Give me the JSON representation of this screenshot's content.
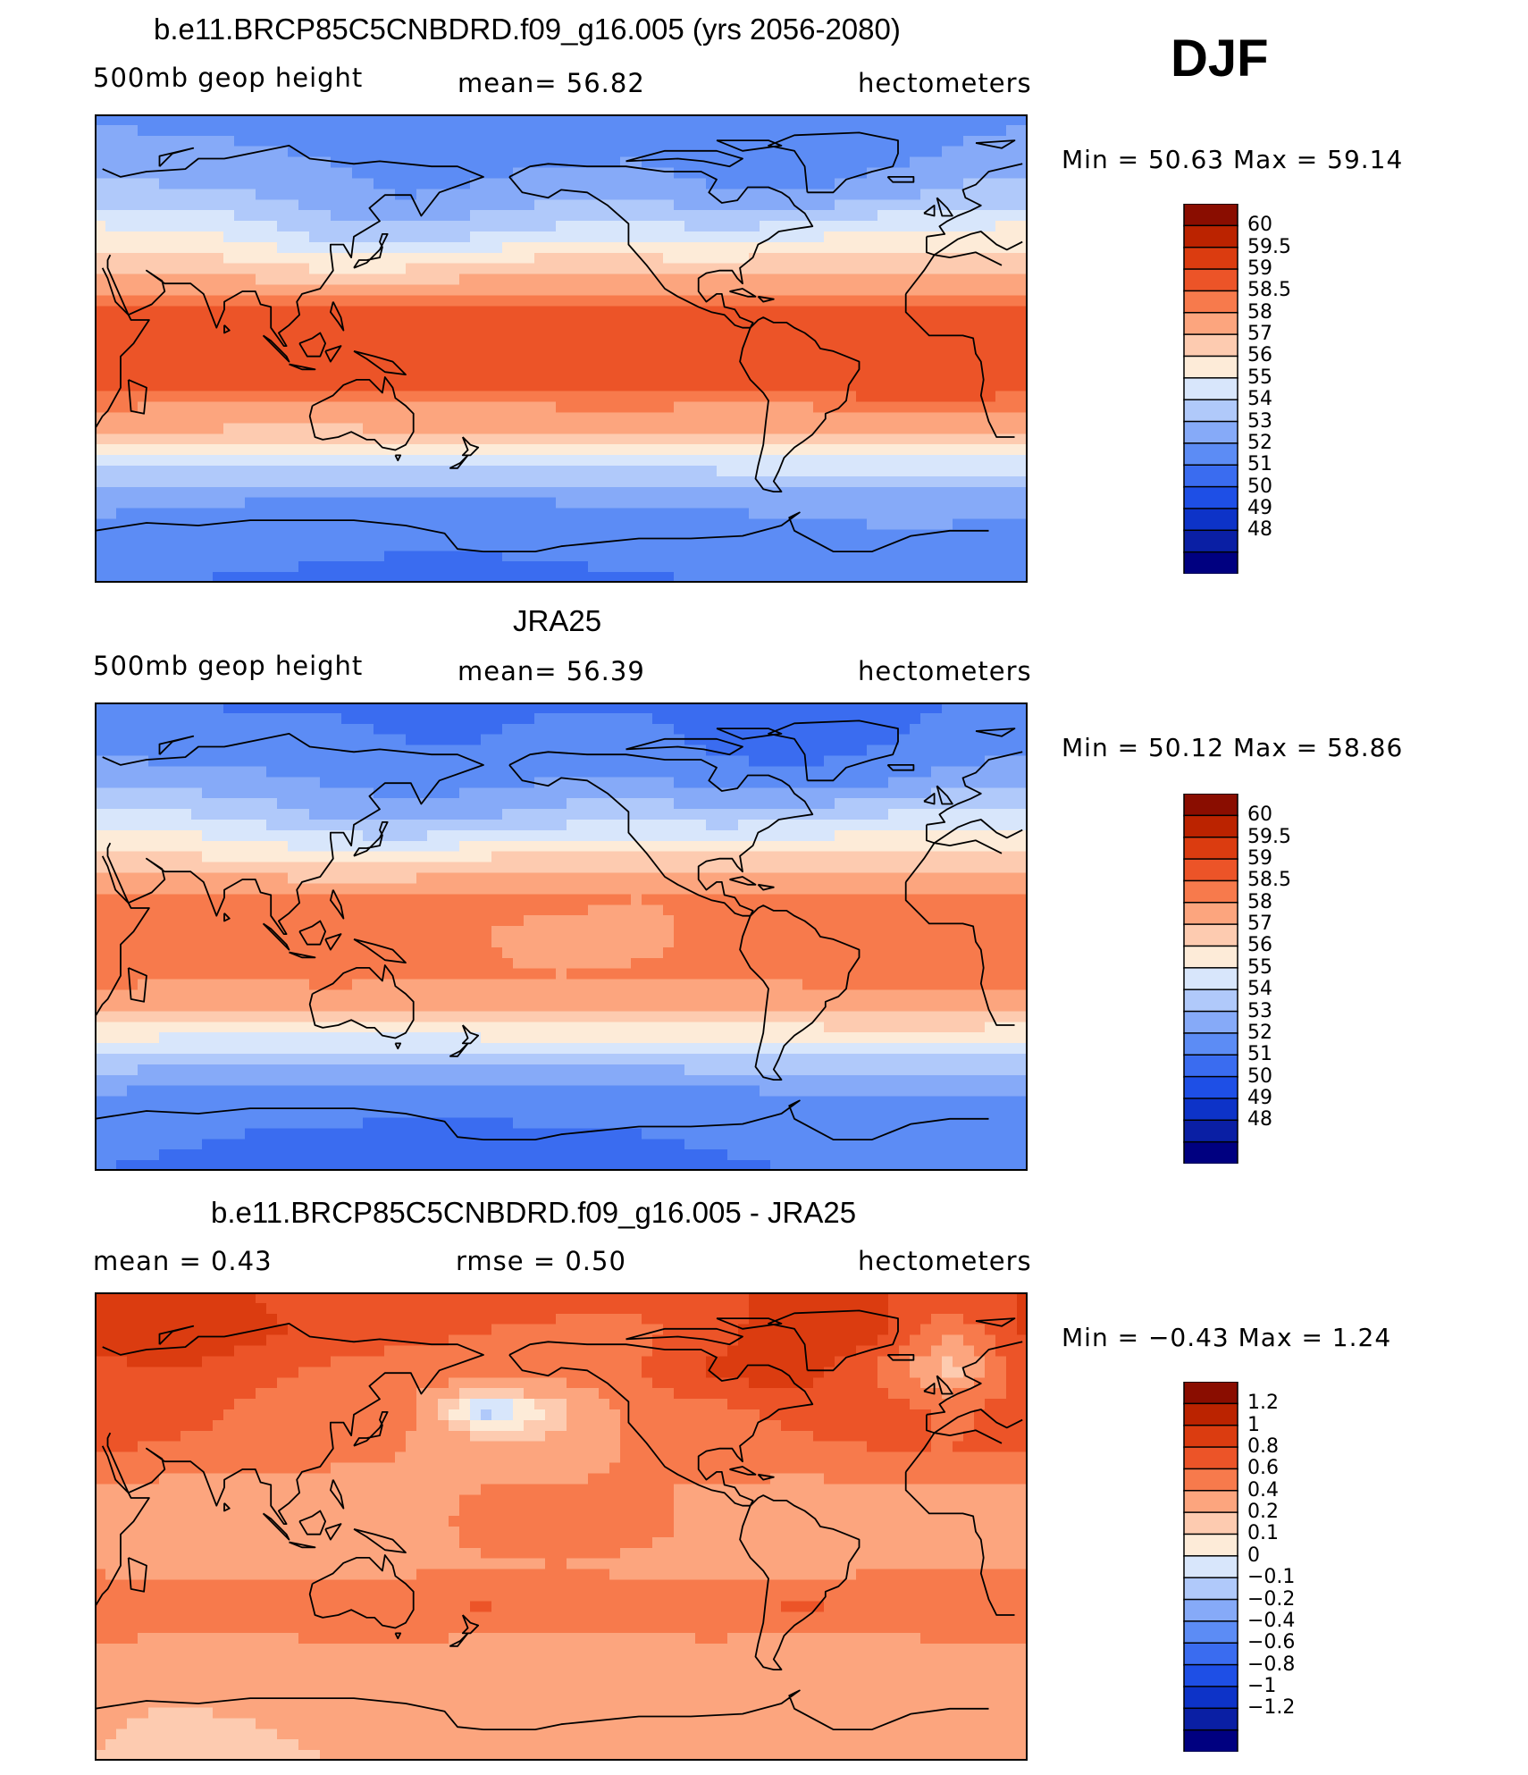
{
  "season": "DJF",
  "colors": {
    "abs": [
      "#000080",
      "#0a1fa4",
      "#0d33c8",
      "#1e4fe6",
      "#3a6cf0",
      "#5c8cf5",
      "#86aaf8",
      "#b0c9fa",
      "#d8e6fb",
      "#fdebd8",
      "#fdcbb0",
      "#fca57e",
      "#f77a4c",
      "#ec5428",
      "#db3c10",
      "#bb2300",
      "#8a0d00"
    ],
    "dif": [
      "#000080",
      "#0a1fa4",
      "#0d33c8",
      "#1e4fe6",
      "#3a6cf0",
      "#5c8cf5",
      "#86aaf8",
      "#b0c9fa",
      "#d8e6fb",
      "#fdebd8",
      "#fdcbb0",
      "#fca57e",
      "#f77a4c",
      "#ec5428",
      "#db3c10",
      "#bb2300",
      "#8a0d00"
    ]
  },
  "panels": [
    {
      "title": "b.e11.BRCP85C5CNBDRD.f09_g16.005 (yrs 2056-2080)",
      "left": "500mb  geop  height",
      "mid": "mean=   56.82",
      "right": "hectometers",
      "minmax": "Min =    50.63  Max =    59.14",
      "colorbar": {
        "labels": [
          "60",
          "59.5",
          "59",
          "58.5",
          "58",
          "57",
          "56",
          "55",
          "54",
          "53",
          "52",
          "51",
          "50",
          "49",
          "48"
        ]
      }
    },
    {
      "title": "JRA25",
      "left": "500mb  geop  height",
      "mid": "mean=   56.39",
      "right": "hectometers",
      "minmax": "Min =    50.12  Max =    58.86",
      "colorbar": {
        "labels": [
          "60",
          "59.5",
          "59",
          "58.5",
          "58",
          "57",
          "56",
          "55",
          "54",
          "53",
          "52",
          "51",
          "50",
          "49",
          "48"
        ]
      }
    },
    {
      "title": "b.e11.BRCP85C5CNBDRD.f09_g16.005 - JRA25",
      "left": "mean =     0.43",
      "mid": "rmse =     0.50",
      "right": "hectometers",
      "minmax": "Min =   −0.43  Max =     1.24",
      "colorbar": {
        "labels": [
          "1.2",
          "1",
          "0.8",
          "0.6",
          "0.4",
          "0.2",
          "0.1",
          "0",
          "−0.1",
          "−0.2",
          "−0.4",
          "−0.6",
          "−0.8",
          "−1",
          "−1.2"
        ]
      }
    }
  ],
  "chart_data": [
    {
      "type": "heatmap",
      "title": "b.e11.BRCP85C5CNBDRD.f09_g16.005 (yrs 2056-2080)",
      "variable": "500mb  geop  height",
      "units": "hectometers",
      "mean": 56.82,
      "min": 50.63,
      "max": 59.14,
      "contour_levels": [
        48,
        49,
        50,
        51,
        52,
        53,
        54,
        55,
        56,
        57,
        58,
        58.5,
        59,
        59.5,
        60
      ],
      "x": [
        30,
        60,
        90,
        120,
        150,
        180,
        210,
        240,
        270,
        300,
        330,
        360,
        390
      ],
      "y": [
        -90,
        -75,
        -60,
        -45,
        -30,
        -15,
        0,
        15,
        30,
        45,
        60,
        75,
        90
      ],
      "z": [
        [
          51.2,
          51.0,
          50.9,
          50.8,
          50.7,
          50.7,
          50.8,
          50.9,
          51.0,
          51.2,
          51.3,
          51.3,
          51.2
        ],
        [
          51.6,
          51.4,
          51.3,
          51.2,
          51.1,
          51.1,
          51.2,
          51.3,
          51.4,
          51.6,
          51.7,
          51.7,
          51.6
        ],
        [
          52.2,
          52.0,
          51.9,
          51.8,
          51.8,
          51.8,
          51.9,
          52.0,
          52.1,
          52.2,
          52.3,
          52.3,
          52.2
        ],
        [
          54.3,
          54.1,
          54.0,
          54.0,
          54.0,
          54.1,
          54.2,
          54.2,
          54.3,
          54.4,
          54.4,
          54.4,
          54.3
        ],
        [
          57.3,
          57.2,
          57.1,
          57.1,
          57.2,
          57.3,
          57.4,
          57.3,
          57.2,
          57.3,
          57.4,
          57.4,
          57.3
        ],
        [
          58.8,
          58.7,
          58.6,
          58.7,
          58.6,
          58.5,
          58.6,
          58.8,
          58.7,
          58.6,
          58.9,
          58.9,
          58.8
        ],
        [
          58.6,
          58.5,
          58.6,
          58.7,
          58.6,
          58.5,
          58.5,
          58.5,
          58.6,
          58.6,
          58.6,
          58.6,
          58.6
        ],
        [
          58.7,
          58.7,
          58.7,
          58.6,
          58.7,
          58.8,
          58.7,
          58.5,
          58.5,
          58.6,
          58.7,
          58.7,
          58.7
        ],
        [
          57.0,
          56.9,
          56.5,
          56.0,
          56.1,
          56.6,
          57.0,
          56.8,
          56.7,
          56.9,
          57.0,
          57.0,
          57.0
        ],
        [
          55.3,
          55.1,
          54.5,
          53.4,
          53.2,
          53.7,
          54.3,
          54.5,
          54.1,
          54.5,
          55.0,
          55.2,
          55.3
        ],
        [
          53.4,
          53.2,
          53.0,
          52.4,
          51.9,
          52.2,
          52.6,
          52.7,
          52.1,
          51.9,
          52.5,
          53.2,
          53.4
        ],
        [
          52.4,
          52.2,
          52.1,
          51.9,
          51.6,
          51.5,
          51.8,
          51.8,
          51.4,
          51.1,
          51.5,
          52.1,
          52.4
        ],
        [
          51.8,
          51.8,
          51.7,
          51.6,
          51.5,
          51.5,
          51.6,
          51.6,
          51.4,
          51.3,
          51.4,
          51.7,
          51.8
        ]
      ]
    },
    {
      "type": "heatmap",
      "title": "JRA25",
      "variable": "500mb  geop  height",
      "units": "hectometers",
      "mean": 56.39,
      "min": 50.12,
      "max": 58.86,
      "contour_levels": [
        48,
        49,
        50,
        51,
        52,
        53,
        54,
        55,
        56,
        57,
        58,
        58.5,
        59,
        59.5,
        60
      ],
      "x": [
        30,
        60,
        90,
        120,
        150,
        180,
        210,
        240,
        270,
        300,
        330,
        360,
        390
      ],
      "y": [
        -90,
        -75,
        -60,
        -45,
        -30,
        -15,
        0,
        15,
        30,
        45,
        60,
        75,
        90
      ],
      "z": [
        [
          51.0,
          50.8,
          50.6,
          50.5,
          50.4,
          50.4,
          50.5,
          50.6,
          50.8,
          51.0,
          51.1,
          51.1,
          51.0
        ],
        [
          51.4,
          51.2,
          51.0,
          50.9,
          50.8,
          50.8,
          50.9,
          51.0,
          51.2,
          51.4,
          51.5,
          51.5,
          51.4
        ],
        [
          52.0,
          51.8,
          51.6,
          51.5,
          51.5,
          51.5,
          51.6,
          51.7,
          51.8,
          52.0,
          52.1,
          52.1,
          52.0
        ],
        [
          53.9,
          53.7,
          53.6,
          53.6,
          53.6,
          53.7,
          53.8,
          53.8,
          53.9,
          54.0,
          54.0,
          54.0,
          53.9
        ],
        [
          56.9,
          56.8,
          56.7,
          56.7,
          56.8,
          56.9,
          57.0,
          56.9,
          56.8,
          56.9,
          57.0,
          57.0,
          56.9
        ],
        [
          58.4,
          58.3,
          58.3,
          58.4,
          58.3,
          58.1,
          58.0,
          58.1,
          58.2,
          58.3,
          58.5,
          58.5,
          58.4
        ],
        [
          58.3,
          58.3,
          58.4,
          58.4,
          58.3,
          58.0,
          57.7,
          57.8,
          58.2,
          58.3,
          58.4,
          58.3,
          58.3
        ],
        [
          58.3,
          58.3,
          58.3,
          58.2,
          58.2,
          58.3,
          58.2,
          58.0,
          58.1,
          58.2,
          58.3,
          58.3,
          58.3
        ],
        [
          56.3,
          56.2,
          55.9,
          55.6,
          55.7,
          56.1,
          56.4,
          56.3,
          56.2,
          56.3,
          56.4,
          56.4,
          56.3
        ],
        [
          54.7,
          54.4,
          53.9,
          53.0,
          52.7,
          53.0,
          53.6,
          54.0,
          53.6,
          53.8,
          54.3,
          54.6,
          54.7
        ],
        [
          52.7,
          52.5,
          52.3,
          51.9,
          51.4,
          51.7,
          52.1,
          52.2,
          51.5,
          51.2,
          51.7,
          52.4,
          52.7
        ],
        [
          51.6,
          51.4,
          51.4,
          51.2,
          51.0,
          51.0,
          51.3,
          51.3,
          50.8,
          50.4,
          50.8,
          51.4,
          51.6
        ],
        [
          51.0,
          51.0,
          50.9,
          50.9,
          50.8,
          50.8,
          50.9,
          50.9,
          50.7,
          50.5,
          50.7,
          51.0,
          51.0
        ]
      ]
    },
    {
      "type": "heatmap",
      "title": "b.e11.BRCP85C5CNBDRD.f09_g16.005 - JRA25",
      "units": "hectometers",
      "mean": 0.43,
      "rmse": 0.5,
      "min": -0.43,
      "max": 1.24,
      "contour_levels": [
        -1.2,
        -1,
        -0.8,
        -0.6,
        -0.4,
        -0.2,
        -0.1,
        0,
        0.1,
        0.2,
        0.4,
        0.6,
        0.8,
        1,
        1.2
      ],
      "x": [
        30,
        60,
        90,
        120,
        150,
        180,
        210,
        240,
        270,
        300,
        330,
        360,
        390
      ],
      "y": [
        -90,
        -75,
        -60,
        -45,
        -30,
        -15,
        0,
        15,
        30,
        45,
        60,
        75,
        90
      ],
      "z": [
        [
          0.2,
          0.15,
          0.15,
          0.2,
          0.2,
          0.22,
          0.25,
          0.25,
          0.22,
          0.2,
          0.2,
          0.2,
          0.2
        ],
        [
          0.22,
          0.18,
          0.2,
          0.25,
          0.3,
          0.3,
          0.3,
          0.3,
          0.28,
          0.25,
          0.22,
          0.22,
          0.22
        ],
        [
          0.25,
          0.22,
          0.25,
          0.3,
          0.3,
          0.3,
          0.32,
          0.3,
          0.28,
          0.25,
          0.25,
          0.25,
          0.25
        ],
        [
          0.4,
          0.35,
          0.35,
          0.38,
          0.4,
          0.35,
          0.35,
          0.38,
          0.38,
          0.35,
          0.35,
          0.38,
          0.4
        ],
        [
          0.6,
          0.55,
          0.58,
          0.6,
          0.55,
          0.62,
          0.55,
          0.45,
          0.55,
          0.62,
          0.6,
          0.6,
          0.6
        ],
        [
          0.35,
          0.32,
          0.3,
          0.33,
          0.35,
          0.38,
          0.4,
          0.36,
          0.32,
          0.3,
          0.35,
          0.35,
          0.35
        ],
        [
          0.32,
          0.3,
          0.3,
          0.32,
          0.33,
          0.45,
          0.5,
          0.45,
          0.35,
          0.3,
          0.32,
          0.32,
          0.32
        ],
        [
          0.35,
          0.35,
          0.35,
          0.35,
          0.38,
          0.4,
          0.42,
          0.42,
          0.38,
          0.35,
          0.35,
          0.35,
          0.35
        ],
        [
          0.65,
          0.55,
          0.52,
          0.45,
          0.4,
          0.3,
          0.25,
          0.45,
          0.52,
          0.55,
          0.6,
          0.6,
          0.65
        ],
        [
          0.7,
          0.75,
          0.55,
          0.4,
          0.45,
          -0.2,
          0.15,
          0.5,
          0.55,
          0.65,
          0.75,
          0.55,
          0.7
        ],
        [
          0.75,
          0.8,
          0.7,
          0.55,
          0.5,
          0.55,
          0.5,
          0.6,
          0.85,
          0.95,
          0.6,
          0.1,
          0.75
        ],
        [
          0.85,
          0.95,
          0.85,
          0.75,
          0.65,
          0.6,
          0.55,
          0.55,
          0.7,
          1.0,
          0.9,
          0.4,
          0.85
        ],
        [
          0.8,
          0.8,
          0.8,
          0.7,
          0.7,
          0.7,
          0.7,
          0.7,
          0.75,
          0.85,
          0.8,
          0.8,
          0.8
        ]
      ]
    }
  ]
}
